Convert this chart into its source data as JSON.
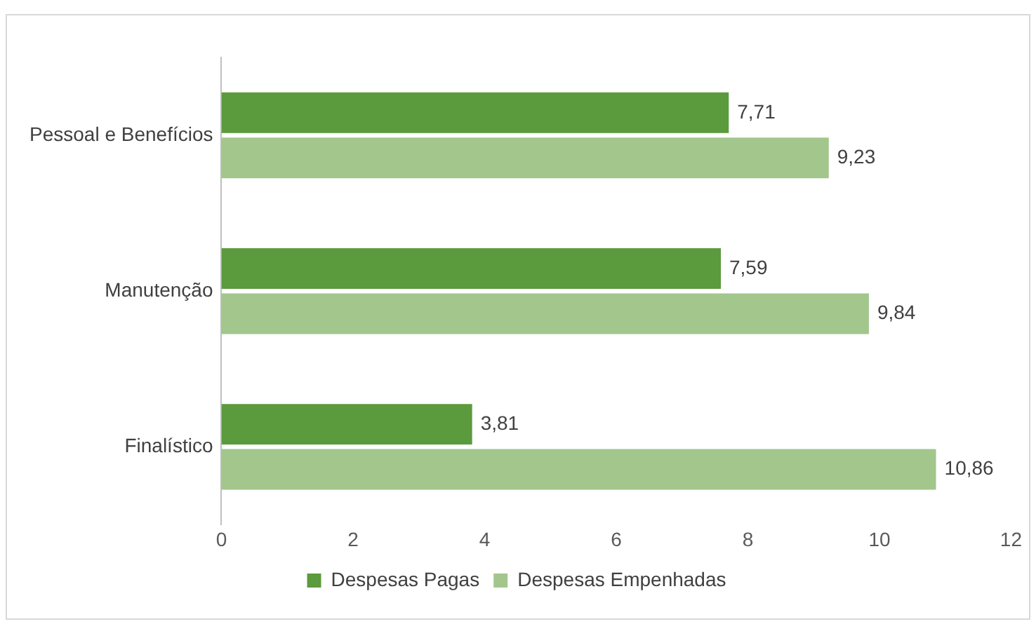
{
  "chart_data": {
    "type": "bar",
    "orientation": "horizontal",
    "categories": [
      "Pessoal e Benefícios",
      "Manutenção",
      "Finalístico"
    ],
    "series": [
      {
        "name": "Despesas Pagas",
        "color": "#5b9a3d",
        "values": [
          7.71,
          7.59,
          3.81
        ],
        "value_labels": [
          "7,71",
          "7,59",
          "3,81"
        ]
      },
      {
        "name": "Despesas Empenhadas",
        "color": "#a2c68c",
        "values": [
          9.23,
          9.84,
          10.86
        ],
        "value_labels": [
          "9,23",
          "9,84",
          "10,86"
        ]
      }
    ],
    "xlim": [
      0,
      12
    ],
    "xticks": [
      0,
      2,
      4,
      6,
      8,
      10,
      12
    ],
    "grid": false,
    "legend": "bottom"
  }
}
